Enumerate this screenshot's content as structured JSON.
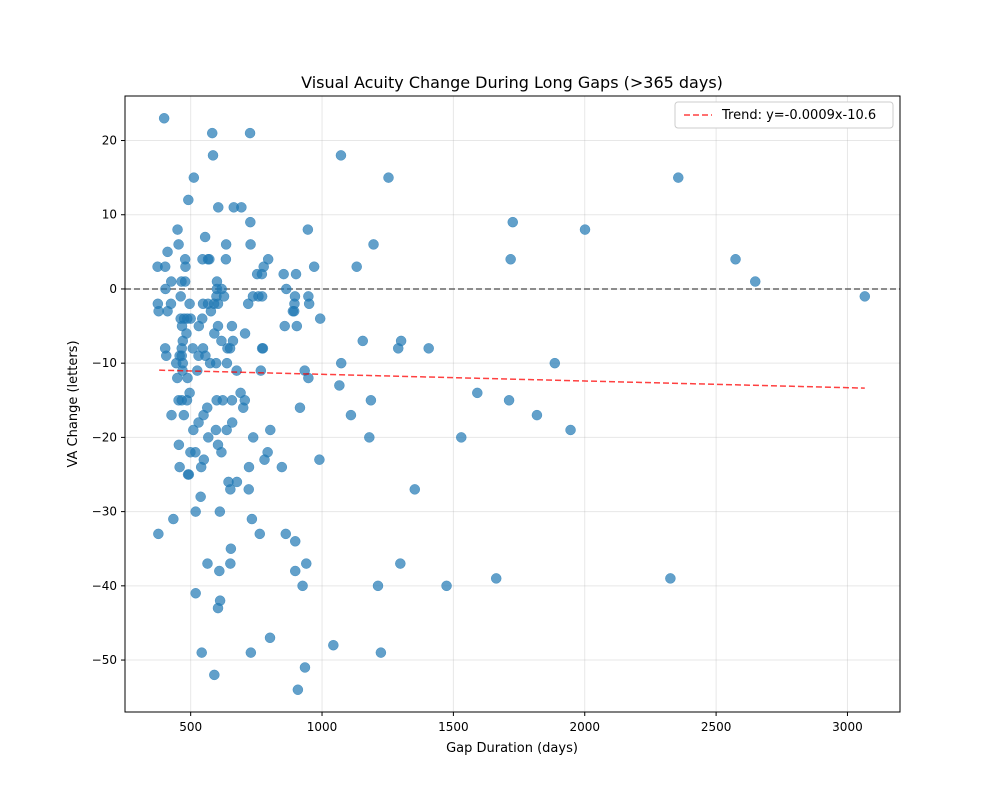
{
  "chart_data": {
    "type": "scatter",
    "title": "Visual Acuity Change During Long Gaps (>365 days)",
    "xlabel": "Gap Duration (days)",
    "ylabel": "VA Change (letters)",
    "xlim": [
      250,
      3200
    ],
    "ylim": [
      -57,
      26
    ],
    "xticks": [
      500,
      1000,
      1500,
      2000,
      2500,
      3000
    ],
    "yticks": [
      -50,
      -40,
      -30,
      -20,
      -10,
      0,
      10,
      20
    ],
    "grid": true,
    "legend_position": "top-right",
    "point_color": "#1f77b4",
    "trend": {
      "label": "Trend: y=-0.0009x-10.6",
      "slope": -0.0009,
      "intercept": -10.6,
      "x_range": [
        380,
        3066
      ],
      "color": "#ff0000"
    },
    "reference_line": {
      "y": 0,
      "color": "#666666"
    },
    "points": [
      [
        399,
        23
      ],
      [
        582,
        21
      ],
      [
        726,
        21
      ],
      [
        585,
        18
      ],
      [
        1072,
        18
      ],
      [
        1253,
        15
      ],
      [
        2356,
        15
      ],
      [
        512,
        15
      ],
      [
        491,
        12
      ],
      [
        605,
        11
      ],
      [
        664,
        11
      ],
      [
        693,
        11
      ],
      [
        727,
        9
      ],
      [
        1726,
        9
      ],
      [
        450,
        8
      ],
      [
        946,
        8
      ],
      [
        2001,
        8
      ],
      [
        555,
        7
      ],
      [
        454,
        6
      ],
      [
        635,
        6
      ],
      [
        728,
        6
      ],
      [
        1196,
        6
      ],
      [
        412,
        5
      ],
      [
        479,
        4
      ],
      [
        545,
        4
      ],
      [
        566,
        4
      ],
      [
        571,
        4
      ],
      [
        634,
        4
      ],
      [
        795,
        4
      ],
      [
        1718,
        4
      ],
      [
        2574,
        4
      ],
      [
        374,
        3
      ],
      [
        403,
        3
      ],
      [
        480,
        3
      ],
      [
        778,
        3
      ],
      [
        970,
        3
      ],
      [
        1132,
        3
      ],
      [
        753,
        2
      ],
      [
        771,
        2
      ],
      [
        854,
        2
      ],
      [
        901,
        2
      ],
      [
        426,
        1
      ],
      [
        465,
        1
      ],
      [
        479,
        1
      ],
      [
        600,
        1
      ],
      [
        2649,
        1
      ],
      [
        404,
        0
      ],
      [
        600,
        0
      ],
      [
        618,
        0
      ],
      [
        864,
        0
      ],
      [
        462,
        -1
      ],
      [
        598,
        -1
      ],
      [
        627,
        -1
      ],
      [
        737,
        -1
      ],
      [
        758,
        -1
      ],
      [
        772,
        -1
      ],
      [
        897,
        -1
      ],
      [
        948,
        -1
      ],
      [
        3066,
        -1
      ],
      [
        375,
        -2
      ],
      [
        425,
        -2
      ],
      [
        496,
        -2
      ],
      [
        547,
        -2
      ],
      [
        566,
        -2
      ],
      [
        589,
        -2
      ],
      [
        604,
        -2
      ],
      [
        719,
        -2
      ],
      [
        895,
        -2
      ],
      [
        951,
        -2
      ],
      [
        378,
        -3
      ],
      [
        412,
        -3
      ],
      [
        577,
        -3
      ],
      [
        889,
        -3
      ],
      [
        894,
        -3
      ],
      [
        462,
        -4
      ],
      [
        475,
        -4
      ],
      [
        487,
        -4
      ],
      [
        500,
        -4
      ],
      [
        544,
        -4
      ],
      [
        993,
        -4
      ],
      [
        467,
        -5
      ],
      [
        531,
        -5
      ],
      [
        604,
        -5
      ],
      [
        657,
        -5
      ],
      [
        858,
        -5
      ],
      [
        904,
        -5
      ],
      [
        484,
        -6
      ],
      [
        590,
        -6
      ],
      [
        707,
        -6
      ],
      [
        470,
        -7
      ],
      [
        617,
        -7
      ],
      [
        661,
        -7
      ],
      [
        1155,
        -7
      ],
      [
        1301,
        -7
      ],
      [
        403,
        -8
      ],
      [
        466,
        -8
      ],
      [
        508,
        -8
      ],
      [
        547,
        -8
      ],
      [
        640,
        -8
      ],
      [
        650,
        -8
      ],
      [
        772,
        -8
      ],
      [
        775,
        -8
      ],
      [
        1290,
        -8
      ],
      [
        1406,
        -8
      ],
      [
        407,
        -9
      ],
      [
        458,
        -9
      ],
      [
        466,
        -9
      ],
      [
        530,
        -9
      ],
      [
        556,
        -9
      ],
      [
        445,
        -10
      ],
      [
        470,
        -10
      ],
      [
        574,
        -10
      ],
      [
        597,
        -10
      ],
      [
        638,
        -10
      ],
      [
        1073,
        -10
      ],
      [
        1886,
        -10
      ],
      [
        469,
        -11
      ],
      [
        525,
        -11
      ],
      [
        675,
        -11
      ],
      [
        767,
        -11
      ],
      [
        934,
        -11
      ],
      [
        449,
        -12
      ],
      [
        488,
        -12
      ],
      [
        948,
        -12
      ],
      [
        1066,
        -13
      ],
      [
        690,
        -14
      ],
      [
        496,
        -14
      ],
      [
        1591,
        -14
      ],
      [
        454,
        -15
      ],
      [
        466,
        -15
      ],
      [
        486,
        -15
      ],
      [
        599,
        -15
      ],
      [
        622,
        -15
      ],
      [
        657,
        -15
      ],
      [
        706,
        -15
      ],
      [
        1186,
        -15
      ],
      [
        1712,
        -15
      ],
      [
        563,
        -16
      ],
      [
        700,
        -16
      ],
      [
        916,
        -16
      ],
      [
        427,
        -17
      ],
      [
        474,
        -17
      ],
      [
        549,
        -17
      ],
      [
        1110,
        -17
      ],
      [
        1818,
        -17
      ],
      [
        658,
        -18
      ],
      [
        530,
        -18
      ],
      [
        510,
        -19
      ],
      [
        637,
        -19
      ],
      [
        596,
        -19
      ],
      [
        803,
        -19
      ],
      [
        1946,
        -19
      ],
      [
        567,
        -20
      ],
      [
        738,
        -20
      ],
      [
        1180,
        -20
      ],
      [
        1530,
        -20
      ],
      [
        455,
        -21
      ],
      [
        604,
        -21
      ],
      [
        499,
        -22
      ],
      [
        518,
        -22
      ],
      [
        617,
        -22
      ],
      [
        793,
        -22
      ],
      [
        781,
        -23
      ],
      [
        550,
        -23
      ],
      [
        990,
        -23
      ],
      [
        458,
        -24
      ],
      [
        540,
        -24
      ],
      [
        722,
        -24
      ],
      [
        847,
        -24
      ],
      [
        490,
        -25
      ],
      [
        493,
        -25
      ],
      [
        644,
        -26
      ],
      [
        676,
        -26
      ],
      [
        651,
        -27
      ],
      [
        721,
        -27
      ],
      [
        1353,
        -27
      ],
      [
        538,
        -28
      ],
      [
        519,
        -30
      ],
      [
        611,
        -30
      ],
      [
        434,
        -31
      ],
      [
        733,
        -31
      ],
      [
        377,
        -33
      ],
      [
        763,
        -33
      ],
      [
        862,
        -33
      ],
      [
        898,
        -34
      ],
      [
        653,
        -35
      ],
      [
        564,
        -37
      ],
      [
        651,
        -37
      ],
      [
        940,
        -37
      ],
      [
        1298,
        -37
      ],
      [
        609,
        -38
      ],
      [
        898,
        -38
      ],
      [
        1663,
        -39
      ],
      [
        2326,
        -39
      ],
      [
        1213,
        -40
      ],
      [
        926,
        -40
      ],
      [
        1474,
        -40
      ],
      [
        612,
        -42
      ],
      [
        519,
        -41
      ],
      [
        604,
        -43
      ],
      [
        802,
        -47
      ],
      [
        1043,
        -48
      ],
      [
        542,
        -49
      ],
      [
        729,
        -49
      ],
      [
        1224,
        -49
      ],
      [
        935,
        -51
      ],
      [
        590,
        -52
      ],
      [
        908,
        -54
      ]
    ]
  }
}
